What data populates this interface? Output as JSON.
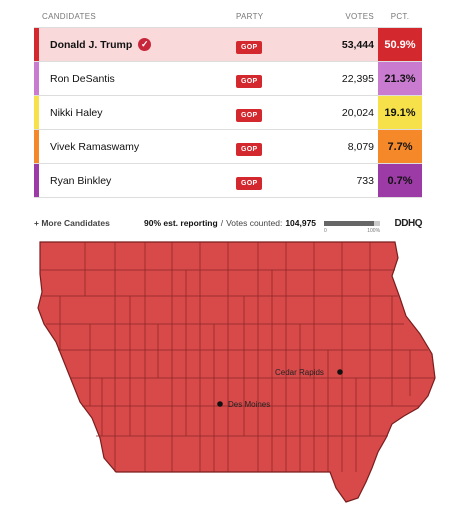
{
  "header": {
    "candidates": "CANDIDATES",
    "party": "PARTY",
    "votes": "VOTES",
    "pct": "PCT."
  },
  "candidates": [
    {
      "name": "Donald J. Trump",
      "party": "GOP",
      "votes": "53,444",
      "pct": "50.9%",
      "color": "#d4282f",
      "winner": true
    },
    {
      "name": "Ron DeSantis",
      "party": "GOP",
      "votes": "22,395",
      "pct": "21.3%",
      "color": "#c97bd0",
      "winner": false
    },
    {
      "name": "Nikki Haley",
      "party": "GOP",
      "votes": "20,024",
      "pct": "19.1%",
      "color": "#f6e14a",
      "winner": false
    },
    {
      "name": "Vivek Ramaswamy",
      "party": "GOP",
      "votes": "8,079",
      "pct": "7.7%",
      "color": "#f5892a",
      "winner": false
    },
    {
      "name": "Ryan Binkley",
      "party": "GOP",
      "votes": "733",
      "pct": "0.7%",
      "color": "#9c3aa6",
      "winner": false
    }
  ],
  "footer": {
    "more_candidates": "+ More Candidates",
    "reporting": "90% est. reporting",
    "separator": "/",
    "votes_counted_label": "Votes counted:",
    "votes_counted": "104,975",
    "progress_fraction": 0.9,
    "progress_min": "0",
    "progress_max": "100%",
    "logo": "DDHQ"
  },
  "map": {
    "fill_color": "#d84a4a",
    "cities": [
      {
        "name": "Cedar Rapids"
      },
      {
        "name": "Des Moines"
      }
    ]
  },
  "icons": {
    "winner": "check-circle-icon"
  }
}
